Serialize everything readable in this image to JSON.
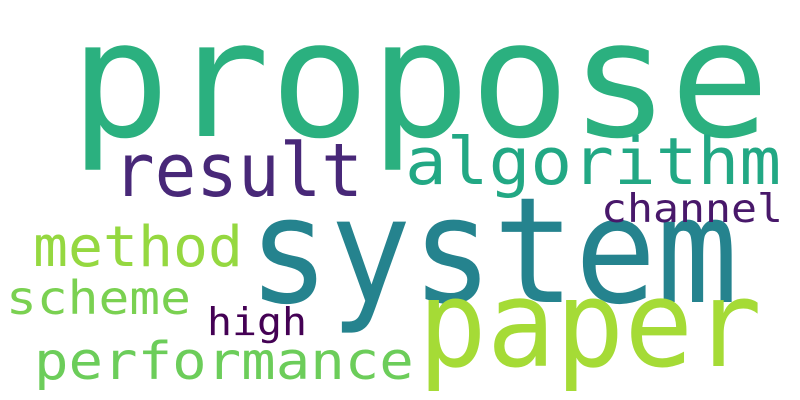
{
  "word_cloud": {
    "background_color": "#ffffff",
    "words": {
      "propose": {
        "text": "propose",
        "color": "#2bb07f"
      },
      "system": {
        "text": "system",
        "color": "#25838e"
      },
      "paper": {
        "text": "paper",
        "color": "#a5db36"
      },
      "algorithm": {
        "text": "algorithm",
        "color": "#22a884"
      },
      "result": {
        "text": "result",
        "color": "#482878"
      },
      "channel": {
        "text": "channel",
        "color": "#48186a"
      },
      "method": {
        "text": "method",
        "color": "#95d840"
      },
      "scheme": {
        "text": "scheme",
        "color": "#7ad151"
      },
      "high": {
        "text": "high",
        "color": "#440154"
      },
      "performance": {
        "text": "performance",
        "color": "#6ccd5a"
      }
    }
  }
}
